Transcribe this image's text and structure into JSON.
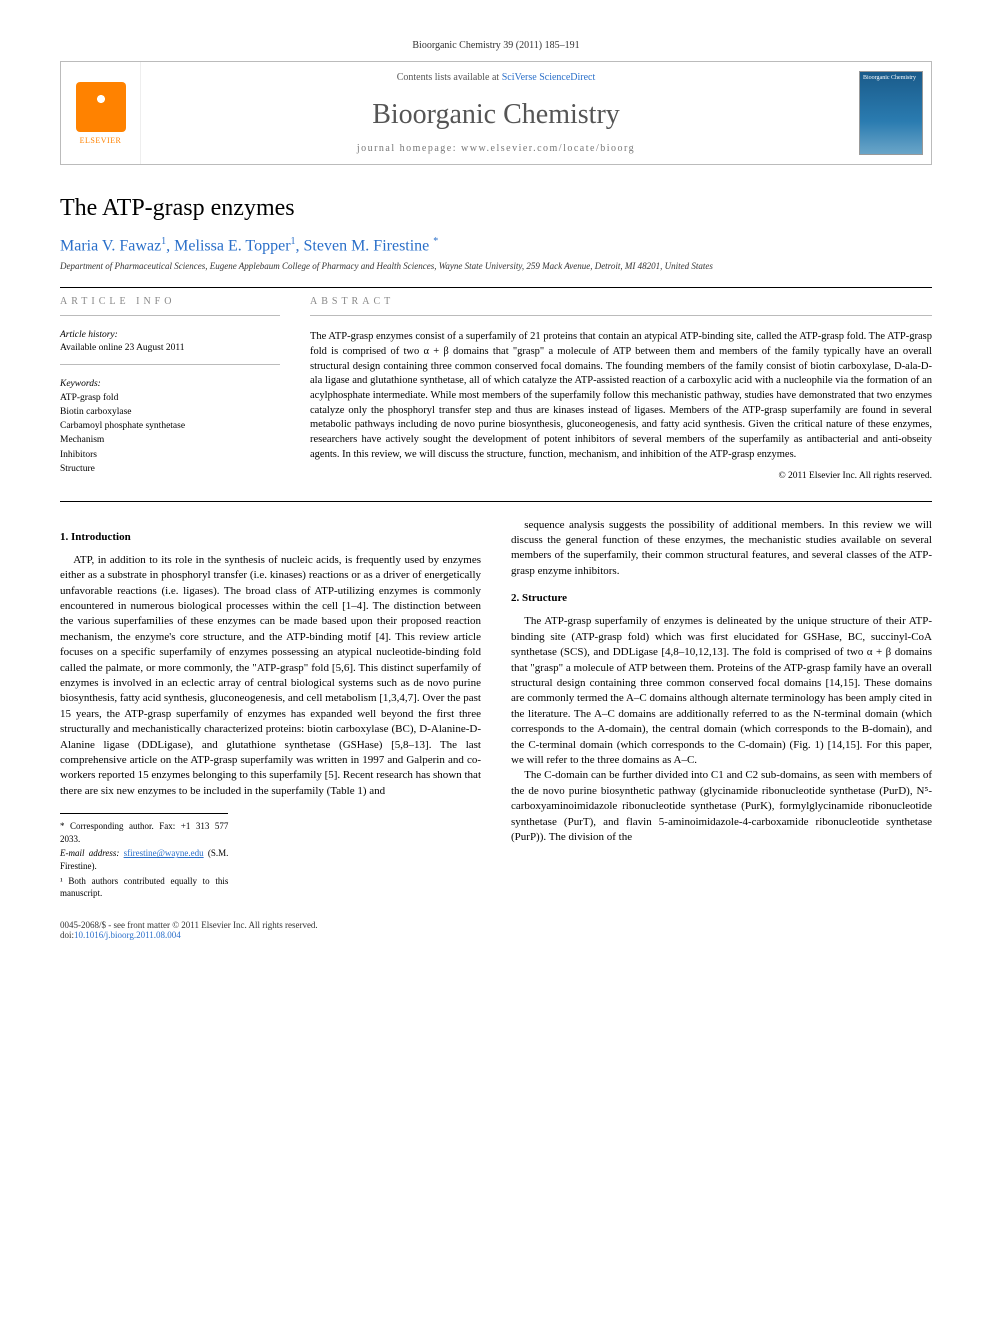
{
  "citation": "Bioorganic Chemistry 39 (2011) 185–191",
  "header": {
    "contents_prefix": "Contents lists available at ",
    "contents_link": "SciVerse ScienceDirect",
    "journal_name": "Bioorganic Chemistry",
    "homepage_prefix": "journal homepage: ",
    "homepage_url": "www.elsevier.com/locate/bioorg",
    "elsevier_label": "ELSEVIER",
    "cover_label": "Bioorganic Chemistry"
  },
  "title": "The ATP-grasp enzymes",
  "authors_html": "Maria V. Fawaz <sup>1</sup>, Melissa E. Topper <sup>1</sup>, Steven M. Firestine <sup>*</sup>",
  "authors": [
    {
      "name": "Maria V. Fawaz",
      "note": "1"
    },
    {
      "name": "Melissa E. Topper",
      "note": "1"
    },
    {
      "name": "Steven M. Firestine",
      "note": "*"
    }
  ],
  "affiliation": "Department of Pharmaceutical Sciences, Eugene Applebaum College of Pharmacy and Health Sciences, Wayne State University, 259 Mack Avenue, Detroit, MI 48201, United States",
  "info": {
    "label": "ARTICLE INFO",
    "history_label": "Article history:",
    "history_text": "Available online 23 August 2011",
    "keywords_label": "Keywords:",
    "keywords": [
      "ATP-grasp fold",
      "Biotin carboxylase",
      "Carbamoyl phosphate synthetase",
      "Mechanism",
      "Inhibitors",
      "Structure"
    ]
  },
  "abstract": {
    "label": "ABSTRACT",
    "text": "The ATP-grasp enzymes consist of a superfamily of 21 proteins that contain an atypical ATP-binding site, called the ATP-grasp fold. The ATP-grasp fold is comprised of two α + β domains that \"grasp\" a molecule of ATP between them and members of the family typically have an overall structural design containing three common conserved focal domains. The founding members of the family consist of biotin carboxylase, D-ala-D-ala ligase and glutathione synthetase, all of which catalyze the ATP-assisted reaction of a carboxylic acid with a nucleophile via the formation of an acylphosphate intermediate. While most members of the superfamily follow this mechanistic pathway, studies have demonstrated that two enzymes catalyze only the phosphoryl transfer step and thus are kinases instead of ligases. Members of the ATP-grasp superfamily are found in several metabolic pathways including de novo purine biosynthesis, gluconeogenesis, and fatty acid synthesis. Given the critical nature of these enzymes, researchers have actively sought the development of potent inhibitors of several members of the superfamily as antibacterial and anti-obseity agents. In this review, we will discuss the structure, function, mechanism, and inhibition of the ATP-grasp enzymes.",
    "copyright": "© 2011 Elsevier Inc. All rights reserved."
  },
  "body": {
    "intro_heading": "1. Introduction",
    "intro_p1": "ATP, in addition to its role in the synthesis of nucleic acids, is frequently used by enzymes either as a substrate in phosphoryl transfer (i.e. kinases) reactions or as a driver of energetically unfavorable reactions (i.e. ligases). The broad class of ATP-utilizing enzymes is commonly encountered in numerous biological processes within the cell [1–4]. The distinction between the various superfamilies of these enzymes can be made based upon their proposed reaction mechanism, the enzyme's core structure, and the ATP-binding motif [4]. This review article focuses on a specific superfamily of enzymes possessing an atypical nucleotide-binding fold called the palmate, or more commonly, the \"ATP-grasp\" fold [5,6]. This distinct superfamily of enzymes is involved in an eclectic array of central biological systems such as de novo purine biosynthesis, fatty acid synthesis, gluconeogenesis, and cell metabolism [1,3,4,7]. Over the past 15 years, the ATP-grasp superfamily of enzymes has expanded well beyond the first three structurally and mechanistically characterized proteins: biotin carboxylase (BC), D-Alanine-D-Alanine ligase (DDLigase), and glutathione synthetase (GSHase) [5,8–13]. The last comprehensive article on the ATP-grasp superfamily was written in 1997 and Galperin and co-workers reported 15 enzymes belonging to this superfamily [5]. Recent research has shown that there are six new enzymes to be included in the superfamily (Table 1) and",
    "intro_p2": "sequence analysis suggests the possibility of additional members. In this review we will discuss the general function of these enzymes, the mechanistic studies available on several members of the superfamily, their common structural features, and several classes of the ATP-grasp enzyme inhibitors.",
    "structure_heading": "2. Structure",
    "structure_p1": "The ATP-grasp superfamily of enzymes is delineated by the unique structure of their ATP-binding site (ATP-grasp fold) which was first elucidated for GSHase, BC, succinyl-CoA synthetase (SCS), and DDLigase [4,8–10,12,13]. The fold is comprised of two α + β domains that \"grasp\" a molecule of ATP between them. Proteins of the ATP-grasp family have an overall structural design containing three common conserved focal domains [14,15]. These domains are commonly termed the A–C domains although alternate terminology has been amply cited in the literature. The A–C domains are additionally referred to as the N-terminal domain (which corresponds to the A-domain), the central domain (which corresponds to the B-domain), and the C-terminal domain (which corresponds to the C-domain) (Fig. 1) [14,15]. For this paper, we will refer to the three domains as A–C.",
    "structure_p2": "The C-domain can be further divided into C1 and C2 sub-domains, as seen with members of the de novo purine biosynthetic pathway (glycinamide ribonucleotide synthetase (PurD), N⁵-carboxyaminoimidazole ribonucleotide synthetase (PurK), formylglycinamide ribonucleotide synthetase (PurT), and flavin 5-aminoimidazole-4-carboxamide ribonucleotide synthetase (PurP)). The division of the"
  },
  "footnotes": {
    "corr": "* Corresponding author. Fax: +1 313 577 2033.",
    "email_label": "E-mail address:",
    "email": "sfirestine@wayne.edu",
    "email_person": "(S.M. Firestine).",
    "equal": "¹ Both authors contributed equally to this manuscript."
  },
  "footer": {
    "line1": "0045-2068/$ - see front matter © 2011 Elsevier Inc. All rights reserved.",
    "doi_label": "doi:",
    "doi": "10.1016/j.bioorg.2011.08.004"
  },
  "colors": {
    "link": "#2a6fc9",
    "elsevier_orange": "#ff8200",
    "cover_blue": "#1a5b8a",
    "rule": "#000000"
  }
}
